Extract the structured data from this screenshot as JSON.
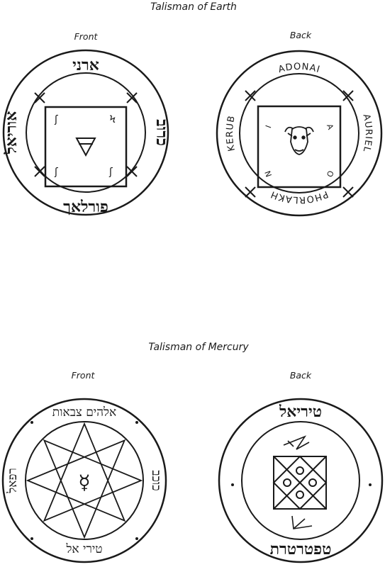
{
  "earth": {
    "title": "Talisman of Earth",
    "front": {
      "label": "Front",
      "hebrew_top": "ארני",
      "hebrew_left": "אוריאל",
      "hebrew_right": "כרוב",
      "hebrew_bottom": "פורלאך",
      "symbol": "🜃"
    },
    "back": {
      "label": "Back",
      "ring_top": "ADONAI",
      "ring_left": "KERUB",
      "ring_right": "AURIEL",
      "ring_bottom": "PHORLAKH",
      "corner_tl": "I",
      "corner_tr": "A",
      "corner_bl": "N",
      "corner_br": "O"
    }
  },
  "mercury": {
    "title": "Talisman of Mercury",
    "front": {
      "label": "Front",
      "hebrew_top": "אלהים צבאות",
      "hebrew_left": "רפאל",
      "hebrew_right": "כוכב",
      "hebrew_bottom": "טירי אל",
      "symbol": "☿"
    },
    "back": {
      "label": "Back",
      "hebrew_top": "טיריאל",
      "hebrew_bottom": "טפטרטרת"
    }
  }
}
